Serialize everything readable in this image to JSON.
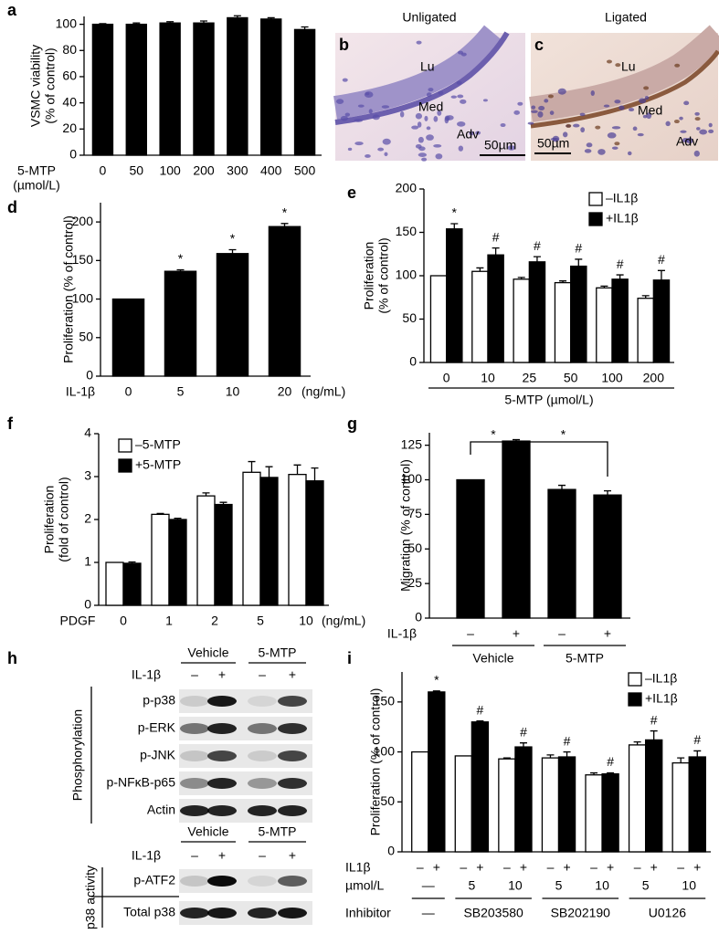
{
  "panel_labels": [
    "a",
    "b",
    "c",
    "d",
    "e",
    "f",
    "g",
    "h",
    "i"
  ],
  "histology": {
    "b_title": "Unligated",
    "c_title": "Ligated",
    "b_labels": [
      "Lu",
      "Med",
      "Adv"
    ],
    "c_labels": [
      "Lu",
      "Med",
      "Adv"
    ],
    "b_scale": "50µm",
    "c_scale": "50µm"
  },
  "chart_data": [
    {
      "type": "bar",
      "ylabel": [
        "VSMC viability",
        "(% of control)"
      ],
      "x_prefix": [
        "5-MTP",
        "(µmol/L)"
      ],
      "categories": [
        "0",
        "50",
        "100",
        "200",
        "300",
        "400",
        "500"
      ],
      "values": [
        100,
        100,
        101,
        101,
        105,
        104,
        96
      ],
      "errors": [
        0.5,
        1,
        1,
        1.5,
        1.5,
        1,
        2
      ],
      "color": "#000000",
      "ylim": [
        0,
        106
      ],
      "yticks": [
        0,
        20,
        40,
        60,
        80,
        100
      ]
    },
    {
      "type": "bar",
      "ylabel": [
        "Proliferation (% of control)"
      ],
      "x_prefix": [
        "IL-1β"
      ],
      "x_suffix": "(ng/mL)",
      "categories": [
        "0",
        "5",
        "10",
        "20"
      ],
      "values": [
        100,
        136,
        159,
        194
      ],
      "errors": [
        null,
        2,
        5,
        4
      ],
      "markers": [
        null,
        "*",
        "*",
        "*"
      ],
      "color": "#000000",
      "ylim": [
        0,
        225
      ],
      "yticks": [
        0,
        50,
        100,
        150,
        200
      ]
    },
    {
      "type": "bar",
      "ylabel": [
        "Proliferation",
        "(% of control)"
      ],
      "categories": [
        "0",
        "10",
        "25",
        "50",
        "100",
        "200"
      ],
      "xlabel": "5-MTP (µmol/L)",
      "series": [
        {
          "name": "–IL1β",
          "color": "#ffffff",
          "values": [
            100,
            105,
            96,
            92,
            86,
            74
          ],
          "errors": [
            null,
            4,
            2,
            2,
            2,
            3
          ]
        },
        {
          "name": "+IL1β",
          "color": "#000000",
          "values": [
            154,
            124,
            116,
            111,
            96,
            95
          ],
          "errors": [
            6,
            8,
            6,
            8,
            5,
            11
          ],
          "markers": [
            "*",
            "#",
            "#",
            "#",
            "#",
            "#"
          ]
        }
      ],
      "ylim": [
        0,
        200
      ],
      "yticks": [
        0,
        50,
        100,
        150,
        200
      ]
    },
    {
      "type": "bar",
      "ylabel": [
        "Proliferation",
        "(fold of control)"
      ],
      "x_prefix": [
        "PDGF"
      ],
      "x_suffix": "(ng/mL)",
      "categories": [
        "0",
        "1",
        "2",
        "5",
        "10"
      ],
      "series": [
        {
          "name": "–5-MTP",
          "color": "#ffffff",
          "values": [
            1,
            2.12,
            2.55,
            3.1,
            3.05
          ],
          "errors": [
            null,
            0.02,
            0.07,
            0.25,
            0.22
          ]
        },
        {
          "name": "+5-MTP",
          "color": "#000000",
          "values": [
            0.98,
            2.0,
            2.35,
            2.98,
            2.9
          ],
          "errors": [
            0.03,
            0.03,
            0.05,
            0.25,
            0.3
          ]
        }
      ],
      "ylim": [
        0,
        4
      ],
      "yticks": [
        0,
        1,
        2,
        3,
        4
      ]
    },
    {
      "type": "bar",
      "ylabel": [
        "Migration (% of control)"
      ],
      "x_prefix": [
        "IL-1β"
      ],
      "categories": [
        "–",
        "+",
        "–",
        "+"
      ],
      "groups": [
        "Vehicle",
        "5-MTP"
      ],
      "values": [
        100,
        128,
        93,
        89
      ],
      "errors": [
        null,
        1,
        3,
        3
      ],
      "color": "#000000",
      "annotations": [
        "*",
        "*"
      ],
      "ylim": [
        0,
        134
      ],
      "yticks": [
        0,
        25,
        50,
        75,
        100,
        125
      ]
    },
    {
      "type": "bar",
      "ylabel": [
        "Proliferation (% of control)"
      ],
      "sign_row": {
        "label": "IL1β",
        "signs": [
          "–",
          "+"
        ]
      },
      "category_label": "µmol/L",
      "categories": [
        "—",
        "5",
        "10",
        "5",
        "10",
        "5",
        "10"
      ],
      "groups": {
        "label": "Inhibitor",
        "names": [
          "—",
          "SB203580",
          "SB202190",
          "U0126"
        ]
      },
      "series": [
        {
          "name": "–IL1β",
          "color": "#ffffff",
          "values": [
            100,
            96,
            93,
            94,
            77,
            107,
            89
          ],
          "errors": [
            null,
            null,
            1,
            3,
            2,
            3,
            5
          ]
        },
        {
          "name": "+IL1β",
          "color": "#000000",
          "values": [
            160,
            130,
            105,
            95,
            78,
            112,
            95
          ],
          "errors": [
            1,
            1,
            4,
            5,
            1,
            9,
            6
          ],
          "markers": [
            "*",
            "#",
            "#",
            "#",
            "#",
            "#",
            "#"
          ]
        }
      ],
      "ylim": [
        0,
        180
      ],
      "yticks": [
        0,
        50,
        100,
        150
      ]
    }
  ],
  "blot": {
    "top": {
      "groups": [
        "Vehicle",
        "5-MTP"
      ],
      "treatment": "IL-1β",
      "signs": [
        "–",
        "+",
        "–",
        "+"
      ],
      "rows": [
        "p-p38",
        "p-ERK",
        "p-JNK",
        "p-NFκB-p65",
        "Actin"
      ],
      "side_label": "Phosphorylation"
    },
    "bottom": {
      "groups": [
        "Vehicle",
        "5-MTP"
      ],
      "treatment": "IL-1β",
      "signs": [
        "–",
        "+",
        "–",
        "+"
      ],
      "rows": [
        "p-ATF2",
        "Total p38"
      ],
      "side_label": "p38 activity"
    }
  }
}
